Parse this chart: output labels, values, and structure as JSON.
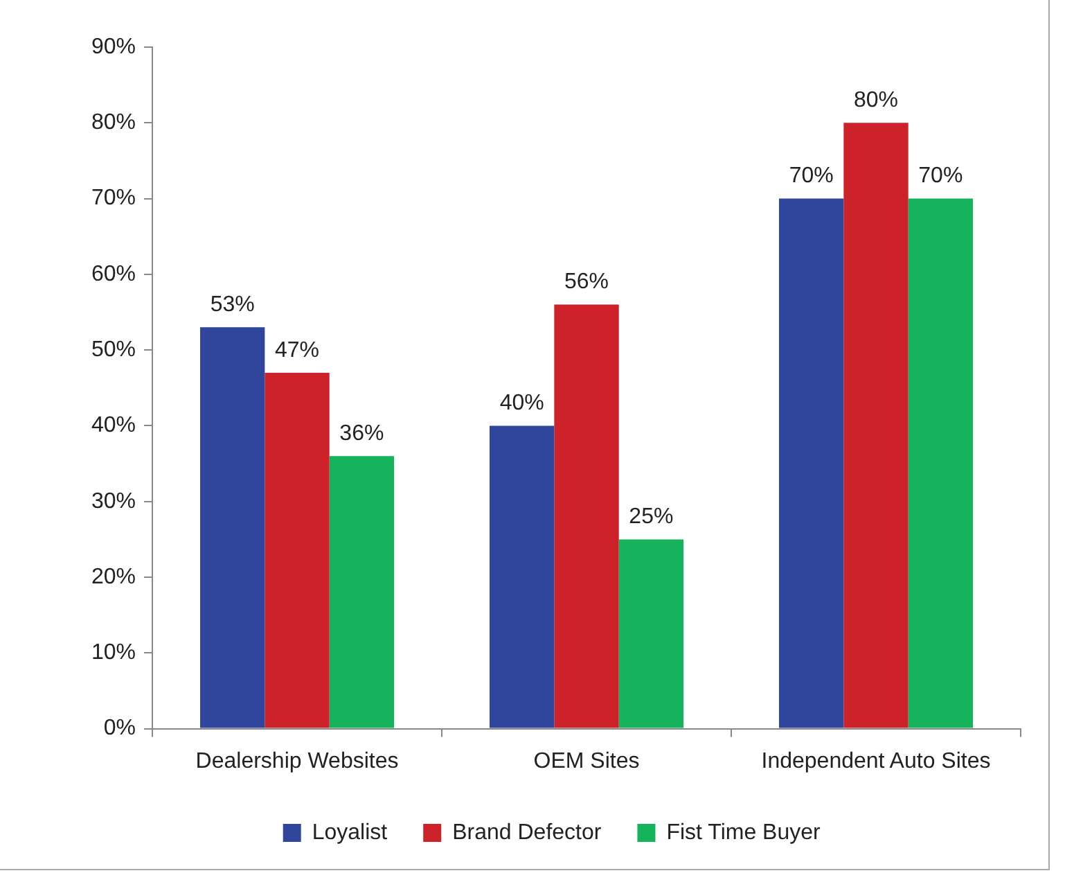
{
  "chart_data": {
    "type": "bar",
    "categories": [
      "Dealership Websites",
      "OEM Sites",
      "Independent Auto Sites"
    ],
    "series": [
      {
        "name": "Loyalist",
        "color": "#2f469c",
        "values": [
          53,
          40,
          70
        ],
        "value_labels": [
          "53%",
          "40%",
          "70%"
        ]
      },
      {
        "name": "Brand Defector",
        "color": "#cd2229",
        "values": [
          47,
          56,
          80
        ],
        "value_labels": [
          "47%",
          "56%",
          "80%"
        ]
      },
      {
        "name": "Fist Time Buyer",
        "color": "#16b35d",
        "values": [
          36,
          25,
          70
        ],
        "value_labels": [
          "36%",
          "25%",
          "70%"
        ]
      }
    ],
    "ylim": [
      0,
      90
    ],
    "yticks": [
      {
        "value": 0,
        "label": "0%"
      },
      {
        "value": 10,
        "label": "10%"
      },
      {
        "value": 20,
        "label": "20%"
      },
      {
        "value": 30,
        "label": "30%"
      },
      {
        "value": 40,
        "label": "40%"
      },
      {
        "value": 50,
        "label": "50%"
      },
      {
        "value": 60,
        "label": "60%"
      },
      {
        "value": 70,
        "label": "70%"
      },
      {
        "value": 80,
        "label": "80%"
      },
      {
        "value": 90,
        "label": "90%"
      }
    ],
    "legend": "bottom"
  }
}
